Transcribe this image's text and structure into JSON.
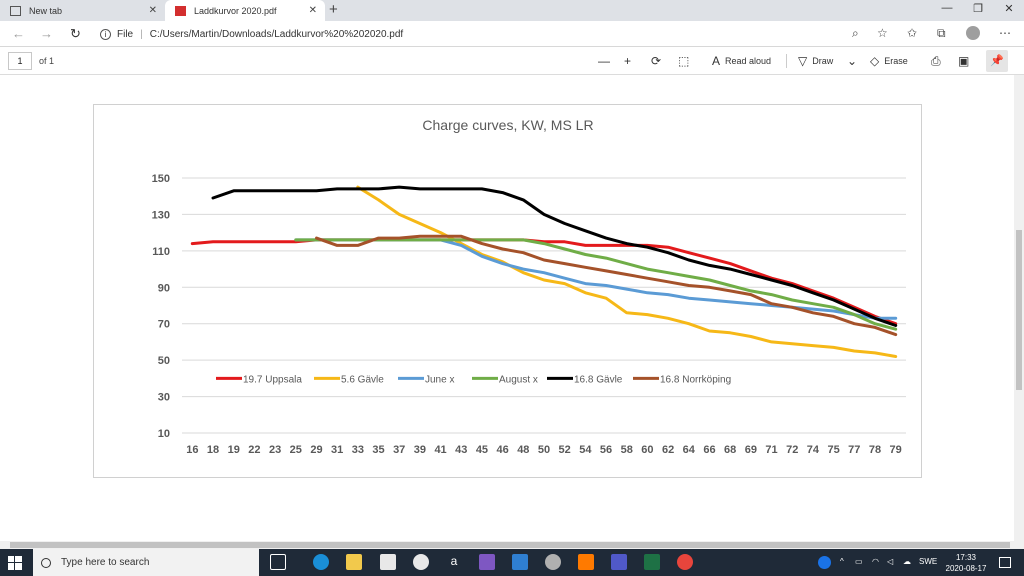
{
  "browser": {
    "tabs": [
      {
        "label": "New tab",
        "active": false
      },
      {
        "label": "Laddkurvor 2020.pdf",
        "active": true
      }
    ],
    "address": {
      "scheme_label": "File",
      "url": "C:/Users/Martin/Downloads/Laddkurvor%20%202020.pdf"
    }
  },
  "pdf_toolbar": {
    "page_current": "1",
    "page_total": "of 1",
    "read_aloud_label": "Read aloud",
    "draw_label": "Draw",
    "erase_label": "Erase"
  },
  "chart_data": {
    "type": "line",
    "title": "Charge curves, KW, MS LR",
    "xlabel": "",
    "ylabel": "",
    "ylim": [
      10,
      150
    ],
    "yticks": [
      150,
      130,
      110,
      90,
      70,
      50,
      30,
      10
    ],
    "grid": true,
    "legend_position": "bottom-inside",
    "categories": [
      "16",
      "18",
      "19",
      "22",
      "23",
      "25",
      "29",
      "31",
      "33",
      "35",
      "37",
      "39",
      "41",
      "43",
      "45",
      "46",
      "48",
      "50",
      "52",
      "54",
      "56",
      "58",
      "60",
      "62",
      "64",
      "66",
      "68",
      "69",
      "71",
      "72",
      "74",
      "75",
      "77",
      "78",
      "79"
    ],
    "series": [
      {
        "name": "19.7 Uppsala",
        "color": "#e31a1c",
        "values": [
          114,
          115,
          115,
          115,
          115,
          115,
          116,
          116,
          116,
          116,
          116,
          116,
          116,
          116,
          116,
          116,
          116,
          115,
          115,
          113,
          113,
          113,
          113,
          112,
          109,
          106,
          103,
          99,
          95,
          92,
          88,
          84,
          79,
          74,
          70
        ]
      },
      {
        "name": "5.6 Gävle",
        "color": "#f6b817",
        "values": [
          null,
          null,
          null,
          null,
          null,
          null,
          null,
          null,
          145,
          138,
          130,
          125,
          120,
          114,
          108,
          104,
          98,
          94,
          92,
          87,
          84,
          76,
          75,
          73,
          70,
          66,
          65,
          63,
          60,
          59,
          58,
          57,
          55,
          54,
          52
        ]
      },
      {
        "name": "June x",
        "color": "#5b9bd5",
        "values": [
          null,
          null,
          null,
          null,
          null,
          116,
          116,
          116,
          116,
          116,
          116,
          116,
          116,
          113,
          107,
          103,
          100,
          98,
          95,
          92,
          91,
          89,
          87,
          86,
          84,
          83,
          82,
          81,
          80,
          79,
          78,
          77,
          75,
          73,
          73
        ]
      },
      {
        "name": "August x",
        "color": "#70ad47",
        "values": [
          null,
          null,
          null,
          null,
          null,
          116,
          116,
          116,
          116,
          116,
          116,
          116,
          116,
          116,
          116,
          116,
          116,
          114,
          111,
          108,
          106,
          103,
          100,
          98,
          96,
          94,
          91,
          88,
          86,
          83,
          81,
          79,
          75,
          70,
          67
        ]
      },
      {
        "name": "16.8 Gävle",
        "color": "#000000",
        "values": [
          null,
          139,
          143,
          143,
          143,
          143,
          143,
          144,
          144,
          144,
          145,
          144,
          144,
          144,
          144,
          142,
          138,
          130,
          125,
          121,
          117,
          114,
          112,
          109,
          105,
          102,
          100,
          97,
          94,
          91,
          87,
          83,
          78,
          73,
          69
        ]
      },
      {
        "name": "16.8 Norrköping",
        "color": "#a5522a",
        "values": [
          null,
          null,
          null,
          null,
          null,
          null,
          117,
          113,
          113,
          117,
          117,
          118,
          118,
          118,
          114,
          111,
          109,
          105,
          103,
          101,
          99,
          97,
          95,
          93,
          91,
          90,
          88,
          86,
          81,
          79,
          76,
          74,
          70,
          68,
          64
        ]
      }
    ]
  },
  "taskbar": {
    "search_placeholder": "Type here to search",
    "tray_lang": "SWE",
    "time": "17:33",
    "date": "2020-08-17"
  }
}
